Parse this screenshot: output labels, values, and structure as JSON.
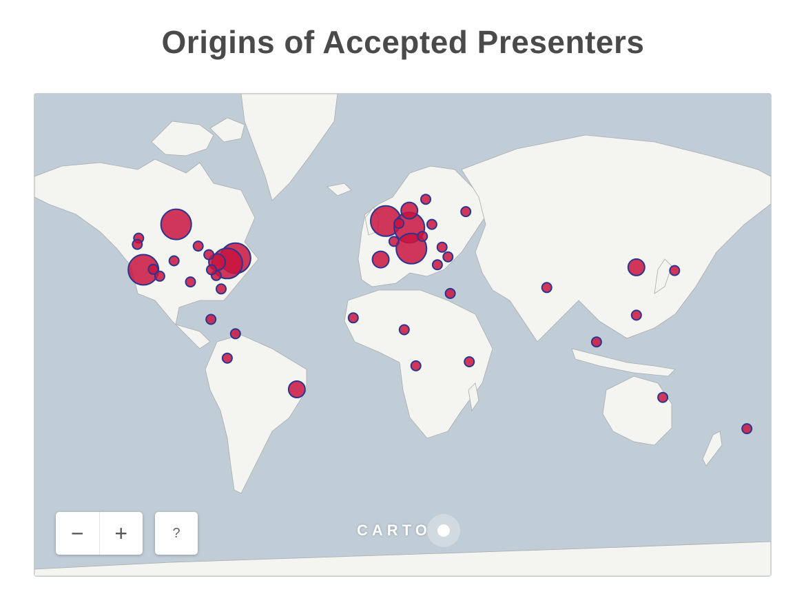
{
  "title": "Origins of Accepted Presenters",
  "map": {
    "basemap": "light world map",
    "attribution_logo": "CARTO",
    "marker_fill": "#c8143f",
    "marker_stroke": "#2a3590",
    "land_color": "#f4f4f1",
    "water_color": "#c0ccd6"
  },
  "controls": {
    "zoom_out_label": "−",
    "zoom_in_label": "+",
    "help_label": "?"
  },
  "markers": [
    {
      "place": "Canada (Prairies)",
      "lat": 52,
      "lon": -104,
      "size": "large"
    },
    {
      "place": "California",
      "lat": 36,
      "lon": -120,
      "size": "large"
    },
    {
      "place": "US Northeast",
      "lat": 40.5,
      "lon": -75,
      "size": "large"
    },
    {
      "place": "US East Coast",
      "lat": 38.5,
      "lon": -79,
      "size": "large"
    },
    {
      "place": "US Midwest",
      "lat": 39,
      "lon": -84,
      "size": "medium"
    },
    {
      "place": "Chicago",
      "lat": 41.8,
      "lon": -88,
      "size": "small"
    },
    {
      "place": "Colorado",
      "lat": 39.5,
      "lon": -105,
      "size": "small"
    },
    {
      "place": "Texas",
      "lat": 31,
      "lon": -97,
      "size": "small"
    },
    {
      "place": "Florida",
      "lat": 28,
      "lon": -82,
      "size": "small"
    },
    {
      "place": "Georgia",
      "lat": 33.7,
      "lon": -84.4,
      "size": "small"
    },
    {
      "place": "Tennessee",
      "lat": 36,
      "lon": -86.7,
      "size": "small"
    },
    {
      "place": "Minnesota",
      "lat": 44.9,
      "lon": -93.2,
      "size": "small"
    },
    {
      "place": "Pacific Northwest",
      "lat": 47.6,
      "lon": -122.3,
      "size": "small"
    },
    {
      "place": "Oregon",
      "lat": 45.5,
      "lon": -123,
      "size": "small"
    },
    {
      "place": "Arizona",
      "lat": 33.4,
      "lon": -112,
      "size": "small"
    },
    {
      "place": "Nevada",
      "lat": 36.2,
      "lon": -115.2,
      "size": "small"
    },
    {
      "place": "Central America",
      "lat": 14,
      "lon": -87,
      "size": "small"
    },
    {
      "place": "Colombia",
      "lat": 7,
      "lon": -75,
      "size": "small"
    },
    {
      "place": "Peru",
      "lat": -5,
      "lon": -79,
      "size": "small"
    },
    {
      "place": "Brazil",
      "lat": -20,
      "lon": -45,
      "size": "medium"
    },
    {
      "place": "United Kingdom",
      "lat": 53,
      "lon": -1.5,
      "size": "large"
    },
    {
      "place": "Germany",
      "lat": 51,
      "lon": 10,
      "size": "large"
    },
    {
      "place": "Italy",
      "lat": 44,
      "lon": 11,
      "size": "large"
    },
    {
      "place": "Denmark",
      "lat": 56,
      "lon": 10,
      "size": "medium"
    },
    {
      "place": "Spain",
      "lat": 40,
      "lon": -4,
      "size": "medium"
    },
    {
      "place": "Netherlands",
      "lat": 52.3,
      "lon": 4.9,
      "size": "small"
    },
    {
      "place": "France",
      "lat": 46.5,
      "lon": 2.5,
      "size": "small"
    },
    {
      "place": "Sweden",
      "lat": 59,
      "lon": 18,
      "size": "small"
    },
    {
      "place": "Poland",
      "lat": 52,
      "lon": 21,
      "size": "small"
    },
    {
      "place": "Austria",
      "lat": 48.2,
      "lon": 16.4,
      "size": "small"
    },
    {
      "place": "Romania",
      "lat": 44.5,
      "lon": 26,
      "size": "small"
    },
    {
      "place": "Greece",
      "lat": 38,
      "lon": 23.7,
      "size": "small"
    },
    {
      "place": "Turkey",
      "lat": 41,
      "lon": 28.9,
      "size": "small"
    },
    {
      "place": "Russia",
      "lat": 55.7,
      "lon": 37.6,
      "size": "small"
    },
    {
      "place": "Egypt",
      "lat": 26,
      "lon": 30,
      "size": "small"
    },
    {
      "place": "Senegal",
      "lat": 14.7,
      "lon": -17.4,
      "size": "small"
    },
    {
      "place": "Nigeria",
      "lat": 9,
      "lon": 7.5,
      "size": "small"
    },
    {
      "place": "Angola",
      "lat": -8.8,
      "lon": 13.2,
      "size": "small"
    },
    {
      "place": "Tanzania",
      "lat": -6.8,
      "lon": 39.3,
      "size": "small"
    },
    {
      "place": "India",
      "lat": 28.6,
      "lon": 77.2,
      "size": "small"
    },
    {
      "place": "China",
      "lat": 37,
      "lon": 121,
      "size": "medium"
    },
    {
      "place": "Japan",
      "lat": 35.7,
      "lon": 139.7,
      "size": "small"
    },
    {
      "place": "Philippines",
      "lat": 16,
      "lon": 121,
      "size": "small"
    },
    {
      "place": "Malaysia",
      "lat": 3,
      "lon": 101.5,
      "size": "small"
    },
    {
      "place": "Australia",
      "lat": -23.7,
      "lon": 133.9,
      "size": "small"
    },
    {
      "place": "New Zealand",
      "lat": -37,
      "lon": 175,
      "size": "small"
    }
  ]
}
